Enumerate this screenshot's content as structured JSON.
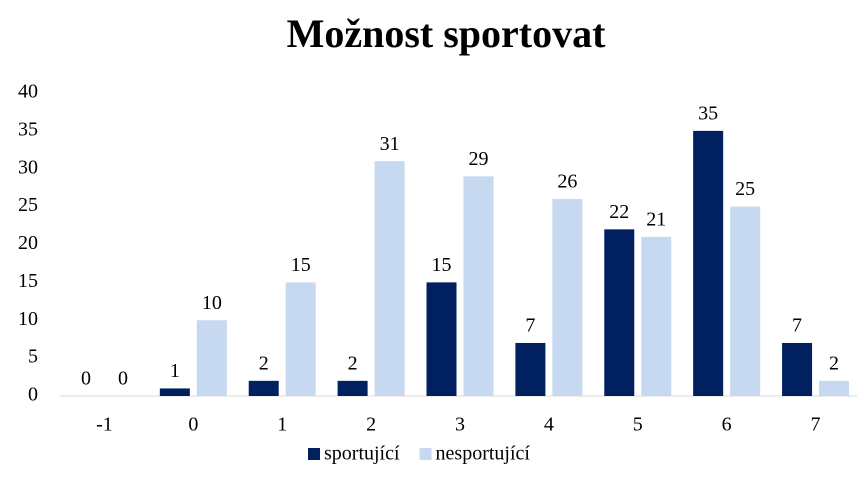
{
  "chart_data": {
    "type": "bar",
    "title": "Možnost sportovat",
    "categories": [
      "-1",
      "0",
      "1",
      "2",
      "3",
      "4",
      "5",
      "6",
      "7"
    ],
    "series": [
      {
        "name": "sportující",
        "color": "#002060",
        "values": [
          0,
          1,
          2,
          2,
          15,
          7,
          22,
          35,
          7
        ]
      },
      {
        "name": "nesportující",
        "color": "#c6d9f1",
        "values": [
          0,
          10,
          15,
          31,
          29,
          26,
          21,
          25,
          2
        ]
      }
    ],
    "ylim": [
      0,
      40
    ],
    "yticks": [
      0,
      5,
      10,
      15,
      20,
      25,
      30,
      35,
      40
    ],
    "grid": false,
    "legend": "bottom"
  }
}
